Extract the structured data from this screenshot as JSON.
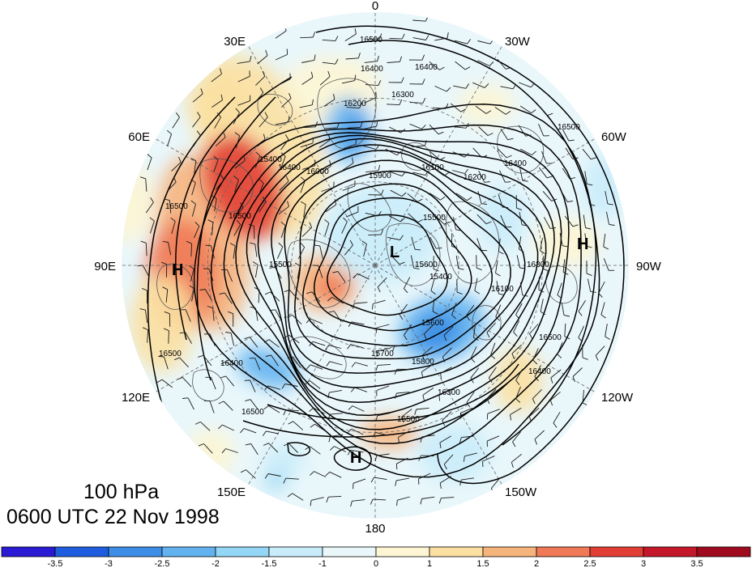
{
  "title": {
    "level": "100 hPa",
    "time": "0600 UTC 22 Nov 1998"
  },
  "longitude_labels": [
    {
      "id": "lon-0",
      "text": "0"
    },
    {
      "id": "lon-30w",
      "text": "30W"
    },
    {
      "id": "lon-60w",
      "text": "60W"
    },
    {
      "id": "lon-90w",
      "text": "90W"
    },
    {
      "id": "lon-120w",
      "text": "120W"
    },
    {
      "id": "lon-150w",
      "text": "150W"
    },
    {
      "id": "lon-180",
      "text": "180"
    },
    {
      "id": "lon-150e",
      "text": "150E"
    },
    {
      "id": "lon-120e",
      "text": "120E"
    },
    {
      "id": "lon-90e",
      "text": "90E"
    },
    {
      "id": "lon-60e",
      "text": "60E"
    },
    {
      "id": "lon-30e",
      "text": "30E"
    }
  ],
  "contour_labels": [
    "16500",
    "16400",
    "16300",
    "16200",
    "16100",
    "16000",
    "15900",
    "15800",
    "15700",
    "15600",
    "15500",
    "15400"
  ],
  "pressure_centers": [
    {
      "type": "H",
      "region": "siberia"
    },
    {
      "type": "H",
      "region": "atlantic"
    },
    {
      "type": "H",
      "region": "pacific"
    },
    {
      "type": "L",
      "region": "pole"
    }
  ],
  "colorbar": {
    "labels": [
      "-3.5",
      "-3",
      "-2.5",
      "-2",
      "-1.5",
      "-1",
      "0",
      "1",
      "1.5",
      "2",
      "2.5",
      "3",
      "3.5"
    ],
    "colors": [
      "#2a1ad4",
      "#1f5de0",
      "#3d8ee6",
      "#62b2ef",
      "#94d6f5",
      "#c9ecfa",
      "#e9f7fb",
      "#fdf5d4",
      "#fbe0a2",
      "#f6b47d",
      "#f07a57",
      "#e23e33",
      "#c4172a",
      "#a00a1e"
    ]
  },
  "palette": {
    "contour": "#000000",
    "grid": "#666666",
    "coast": "#555555",
    "barb": "#1a1a1a"
  }
}
